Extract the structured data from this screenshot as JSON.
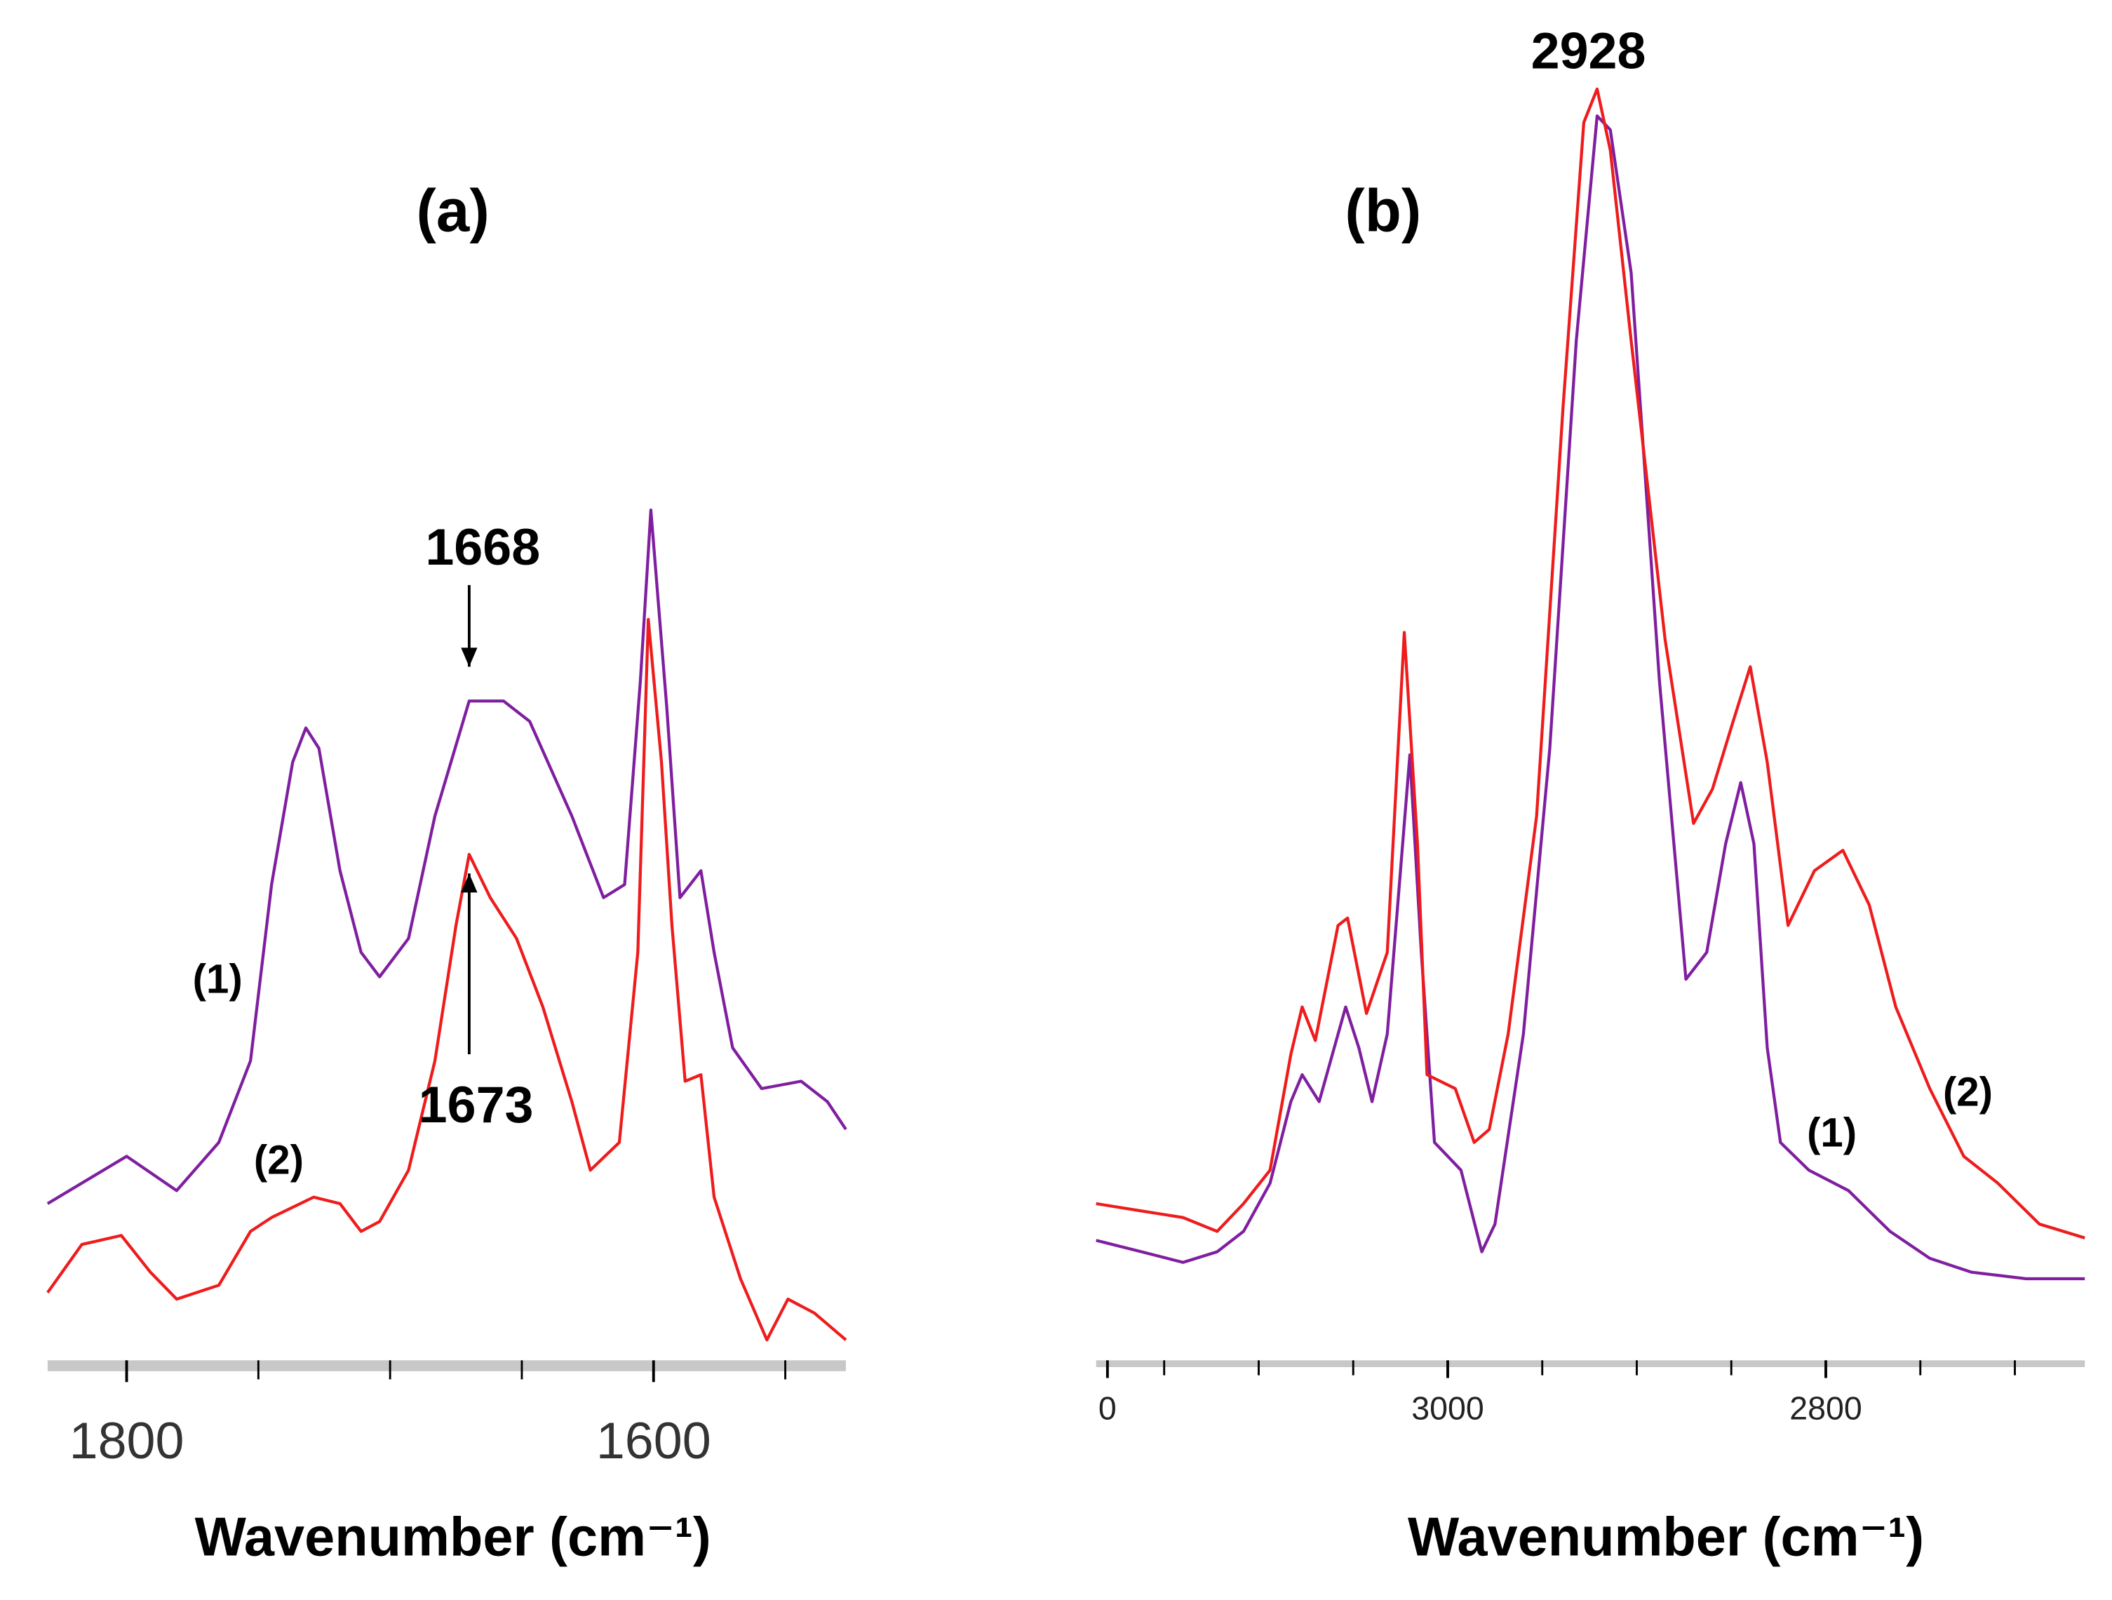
{
  "chart_data": [
    {
      "type": "line",
      "title": "(a)",
      "xlabel": "Wavenumber (cm⁻¹)",
      "xlim": [
        1830,
        1527
      ],
      "xticks": [
        1800,
        1600
      ],
      "xminor_ticks": [
        1750,
        1700,
        1650,
        1550
      ],
      "ylim": [
        0,
        110
      ],
      "annotations": [
        "1668",
        "1673"
      ],
      "series": [
        {
          "name": "(1)",
          "color": "#7f1f9f",
          "x": [
            1830,
            1800,
            1781,
            1765,
            1753,
            1745,
            1737,
            1732,
            1727,
            1719,
            1711,
            1704,
            1693,
            1683,
            1670,
            1657,
            1647,
            1631,
            1619,
            1611,
            1605,
            1601,
            1595,
            1590,
            1582,
            1577,
            1570,
            1559,
            1544,
            1534,
            1527
          ],
          "values": [
            19.2,
            25,
            20.8,
            26.7,
            36.7,
            58.3,
            73.3,
            77.5,
            75,
            60,
            50,
            47,
            51.7,
            66.7,
            80.8,
            80.8,
            78.3,
            66.7,
            56.7,
            58.3,
            83.3,
            104.2,
            80,
            56.7,
            60,
            50,
            38.3,
            33.3,
            34.2,
            31.7,
            28.3
          ]
        },
        {
          "name": "(2)",
          "color": "#ee1c1c",
          "x": [
            1830,
            1817,
            1802,
            1791,
            1781,
            1765,
            1753,
            1745,
            1729,
            1719,
            1711,
            1704,
            1693,
            1683,
            1675,
            1670,
            1662,
            1652,
            1642,
            1631,
            1624,
            1613,
            1606,
            1602,
            1597,
            1593,
            1588,
            1582,
            1577,
            1567,
            1557,
            1549,
            1539,
            1527
          ],
          "values": [
            8.3,
            14.2,
            15.3,
            10.8,
            7.5,
            9.2,
            15.8,
            17.5,
            20,
            19.2,
            15.8,
            17,
            23.3,
            36.7,
            53.3,
            62,
            56.7,
            51.7,
            43.3,
            31.7,
            23.3,
            26.7,
            50,
            90.8,
            73.3,
            53.3,
            34.2,
            35,
            20,
            10,
            2.5,
            7.5,
            5.8,
            2.5
          ]
        }
      ]
    },
    {
      "type": "line",
      "title": "(b)",
      "xlabel": "Wavenumber (cm⁻¹)",
      "xlim": [
        3186,
        2663
      ],
      "xticks": [
        {
          "value": 3180,
          "label": "0"
        },
        3000,
        2800
      ],
      "xminor_ticks": [
        3150,
        3100,
        3050,
        2950,
        2900,
        2850,
        2750,
        2700
      ],
      "ylim": [
        0,
        160
      ],
      "annotations": [
        "2928"
      ],
      "series": [
        {
          "name": "(1)",
          "color": "#7f1f9f",
          "x": [
            3186,
            3162,
            3140,
            3122,
            3108,
            3094,
            3083,
            3077,
            3068,
            3054,
            3047,
            3040,
            3032,
            3020,
            3014,
            3007,
            3000,
            2993,
            2982,
            2975,
            2960,
            2946,
            2932,
            2921,
            2914,
            2903,
            2888,
            2874,
            2863,
            2853,
            2845,
            2838,
            2831,
            2824,
            2809,
            2788,
            2766,
            2745,
            2723,
            2694,
            2663
          ],
          "values": [
            14.7,
            13.3,
            12,
            13.3,
            15.8,
            21.7,
            31.7,
            35,
            31.7,
            43.3,
            38.3,
            31.7,
            40,
            74.2,
            50,
            26.7,
            25,
            23.3,
            13.3,
            16.7,
            40,
            75,
            125,
            152.5,
            150.8,
            133.3,
            83.3,
            46.7,
            50,
            63.3,
            70.8,
            63.3,
            38.3,
            26.7,
            23.3,
            20.8,
            15.8,
            12.5,
            10.8,
            10,
            10
          ]
        },
        {
          "name": "(2)",
          "color": "#ee1c1c",
          "x": [
            3186,
            3162,
            3140,
            3122,
            3108,
            3094,
            3083,
            3077,
            3070,
            3058,
            3053,
            3043,
            3032,
            3023,
            3016,
            3011,
            2996,
            2986,
            2978,
            2968,
            2953,
            2939,
            2928,
            2921,
            2914,
            2903,
            2885,
            2870,
            2860,
            2849,
            2840,
            2831,
            2820,
            2806,
            2791,
            2777,
            2763,
            2745,
            2727,
            2709,
            2687,
            2663
          ],
          "values": [
            19.2,
            18.3,
            17.5,
            15.8,
            19.2,
            23.3,
            37.5,
            43.3,
            39.2,
            53.3,
            54.2,
            42.5,
            50,
            89.2,
            63.3,
            35,
            33.3,
            26.7,
            28.3,
            40,
            66.7,
            116.7,
            151.7,
            155.8,
            148.3,
            125,
            88.3,
            65.8,
            70,
            78.3,
            85,
            73.3,
            53.3,
            60,
            62.5,
            55.8,
            43.3,
            33.3,
            25,
            21.7,
            16.7,
            15
          ]
        }
      ]
    }
  ]
}
